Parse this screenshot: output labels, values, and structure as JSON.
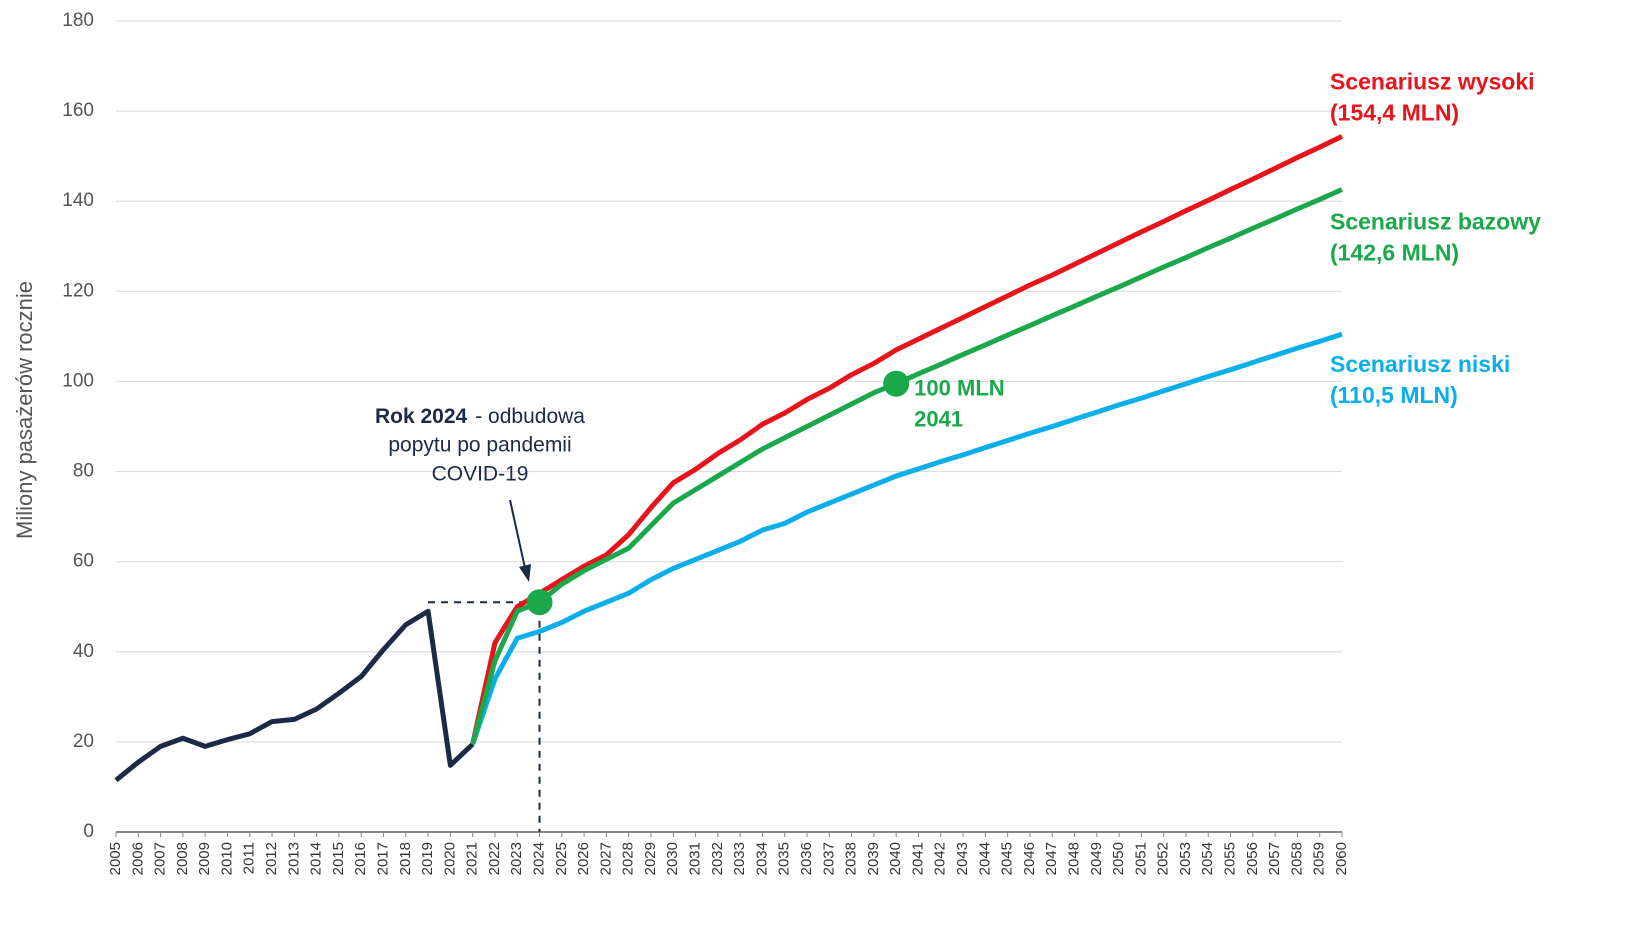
{
  "chart_data": {
    "type": "line",
    "ylabel": "Miliony pasażerów rocznie",
    "x": [
      2005,
      2006,
      2007,
      2008,
      2009,
      2010,
      2011,
      2012,
      2013,
      2014,
      2015,
      2016,
      2017,
      2018,
      2019,
      2020,
      2021,
      2022,
      2023,
      2024,
      2025,
      2026,
      2027,
      2028,
      2029,
      2030,
      2031,
      2032,
      2033,
      2034,
      2035,
      2036,
      2037,
      2038,
      2039,
      2040,
      2041,
      2042,
      2043,
      2044,
      2045,
      2046,
      2047,
      2048,
      2049,
      2050,
      2051,
      2052,
      2053,
      2054,
      2055,
      2056,
      2057,
      2058,
      2059,
      2060
    ],
    "xlim": [
      2005,
      2060
    ],
    "ylim": [
      0,
      180
    ],
    "yticks": [
      0,
      20,
      40,
      60,
      80,
      100,
      120,
      140,
      160,
      180
    ],
    "grid": true,
    "series": [
      {
        "color": "#1b2a47",
        "values": [
          11.5,
          15.5,
          19,
          20.8,
          19,
          20.5,
          21.8,
          24.5,
          25,
          27.3,
          30.8,
          34.5,
          40.5,
          46,
          49,
          14.8,
          19.5,
          null,
          null,
          null,
          null,
          null,
          null,
          null,
          null,
          null,
          null,
          null,
          null,
          null,
          null,
          null,
          null,
          null,
          null,
          null,
          null,
          null,
          null,
          null,
          null,
          null,
          null,
          null,
          null,
          null,
          null,
          null,
          null,
          null,
          null,
          null,
          null,
          null,
          null,
          null
        ]
      },
      {
        "name": "Scenariusz niski",
        "end_label": "(110,5 MLN)",
        "color": "#0aaeea",
        "values": [
          null,
          null,
          null,
          null,
          null,
          null,
          null,
          null,
          null,
          null,
          null,
          null,
          null,
          null,
          null,
          null,
          19.5,
          34,
          43,
          44.5,
          46.5,
          49,
          51,
          53,
          56,
          58.5,
          60.5,
          62.5,
          64.5,
          67,
          68.5,
          71,
          73,
          75,
          77,
          79,
          80.6,
          82.2,
          83.7,
          85.3,
          86.9,
          88.5,
          90,
          91.6,
          93.2,
          94.8,
          96.3,
          97.9,
          99.5,
          101.1,
          102.6,
          104.2,
          105.8,
          107.4,
          108.9,
          110.5
        ]
      },
      {
        "name": "Scenariusz wysoki",
        "end_label": "(154,4 MLN)",
        "color": "#e8141b",
        "values": [
          null,
          null,
          null,
          null,
          null,
          null,
          null,
          null,
          null,
          null,
          null,
          null,
          null,
          null,
          null,
          null,
          19.5,
          42,
          50,
          53,
          56,
          59,
          61.5,
          66,
          72,
          77.5,
          80.5,
          84,
          87,
          90.5,
          93,
          96,
          98.5,
          101.5,
          104,
          107,
          109.4,
          111.8,
          114.2,
          116.6,
          119,
          121.4,
          123.6,
          126,
          128.4,
          130.8,
          133.2,
          135.5,
          137.9,
          140.2,
          142.6,
          144.9,
          147.3,
          149.7,
          152,
          154.4
        ]
      },
      {
        "name": "Scenariusz bazowy",
        "end_label": "(142,6 MLN)",
        "color": "#1aa84b",
        "values": [
          null,
          null,
          null,
          null,
          null,
          null,
          null,
          null,
          null,
          null,
          null,
          null,
          null,
          null,
          null,
          null,
          19.5,
          38,
          49,
          51,
          55,
          58,
          60.5,
          63,
          68,
          73,
          76,
          79,
          82,
          85,
          87.5,
          90,
          92.5,
          95,
          97.5,
          99.5,
          101.7,
          103.8,
          106,
          108.1,
          110.3,
          112.4,
          114.6,
          116.7,
          118.9,
          121,
          123.2,
          125.4,
          127.5,
          129.7,
          131.8,
          134,
          136.1,
          138.3,
          140.4,
          142.6
        ]
      }
    ],
    "annotations": [
      {
        "bold": "Rok 2024",
        "lines": [
          "- odbudowa",
          "popytu po pandemii",
          "COVID-19"
        ]
      },
      {
        "lines": [
          "100 MLN",
          "2041"
        ]
      }
    ]
  }
}
